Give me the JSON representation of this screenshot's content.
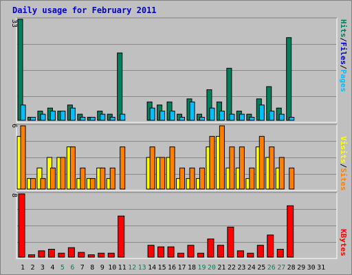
{
  "title": "Daily usage for February 2011",
  "colors": {
    "background": "#c0c0c0",
    "frame": "#808080",
    "hits": "#00805c",
    "files": "#00c0ff",
    "pages": "#00c0ff",
    "visits": "#ff8000",
    "sites": "#ffff00",
    "kbytes": "#ff0000",
    "weekend_label": "#00805c",
    "weekday_label": "#000000"
  },
  "legend_top": {
    "pages": "Pages",
    "files": "Files",
    "hits": "Hits",
    "sep": "/"
  },
  "legend_mid": {
    "sites": "Sites",
    "visits": "Visits",
    "sep": "/"
  },
  "legend_bot": {
    "kbytes": "KBytes"
  },
  "chart_data": {
    "type": "bar",
    "days": [
      1,
      2,
      3,
      4,
      5,
      6,
      7,
      8,
      9,
      10,
      11,
      12,
      13,
      14,
      15,
      16,
      17,
      18,
      19,
      20,
      21,
      22,
      23,
      24,
      25,
      26,
      27,
      28,
      29,
      30,
      31
    ],
    "weekend_days": [
      5,
      6,
      12,
      13,
      19,
      20,
      26,
      27
    ],
    "panels": {
      "usage": {
        "ymax_label": "33",
        "ymax": 33,
        "series": [
          {
            "name": "Hits",
            "values": [
              33,
              1,
              3,
              4,
              3,
              5,
              2,
              1,
              3,
              2,
              22,
              0,
              0,
              6,
              5,
              6,
              2,
              7,
              2,
              10,
              6,
              17,
              3,
              2,
              7,
              11,
              4,
              27,
              0,
              0,
              0
            ]
          },
          {
            "name": "Files",
            "values": [
              5,
              1,
              2,
              3,
              3,
              4,
              1,
              1,
              2,
              1,
              2,
              0,
              0,
              4,
              3,
              3,
              1,
              6,
              1,
              4,
              3,
              2,
              2,
              1,
              5,
              3,
              2,
              1,
              0,
              0,
              0
            ]
          }
        ]
      },
      "visits": {
        "ymax_label": "6",
        "ymax": 6,
        "series": [
          {
            "name": "Sites",
            "values": [
              5,
              1,
              2,
              3,
              3,
              4,
              1,
              1,
              2,
              1,
              0,
              0,
              0,
              3,
              3,
              3,
              1,
              1,
              1,
              4,
              5,
              2,
              2,
              1,
              4,
              3,
              2,
              0,
              0,
              0,
              0
            ]
          },
          {
            "name": "Visits",
            "values": [
              6,
              1,
              1,
              2,
              3,
              4,
              2,
              1,
              2,
              2,
              4,
              0,
              0,
              4,
              3,
              4,
              2,
              2,
              2,
              5,
              6,
              4,
              4,
              2,
              5,
              4,
              3,
              2,
              0,
              0,
              0
            ]
          }
        ]
      },
      "kbytes": {
        "ymax_label": "8",
        "ymax": 8,
        "series": [
          {
            "name": "KBytes",
            "values": [
              8.0,
              0.3,
              0.8,
              1.0,
              0.5,
              1.2,
              0.6,
              0.3,
              0.5,
              0.5,
              5.2,
              0,
              0,
              1.5,
              1.3,
              1.3,
              0.5,
              1.5,
              0.5,
              2.3,
              1.5,
              3.8,
              0.8,
              0.5,
              1.5,
              2.8,
              1.0,
              6.5,
              0,
              0,
              0
            ]
          }
        ]
      }
    }
  }
}
